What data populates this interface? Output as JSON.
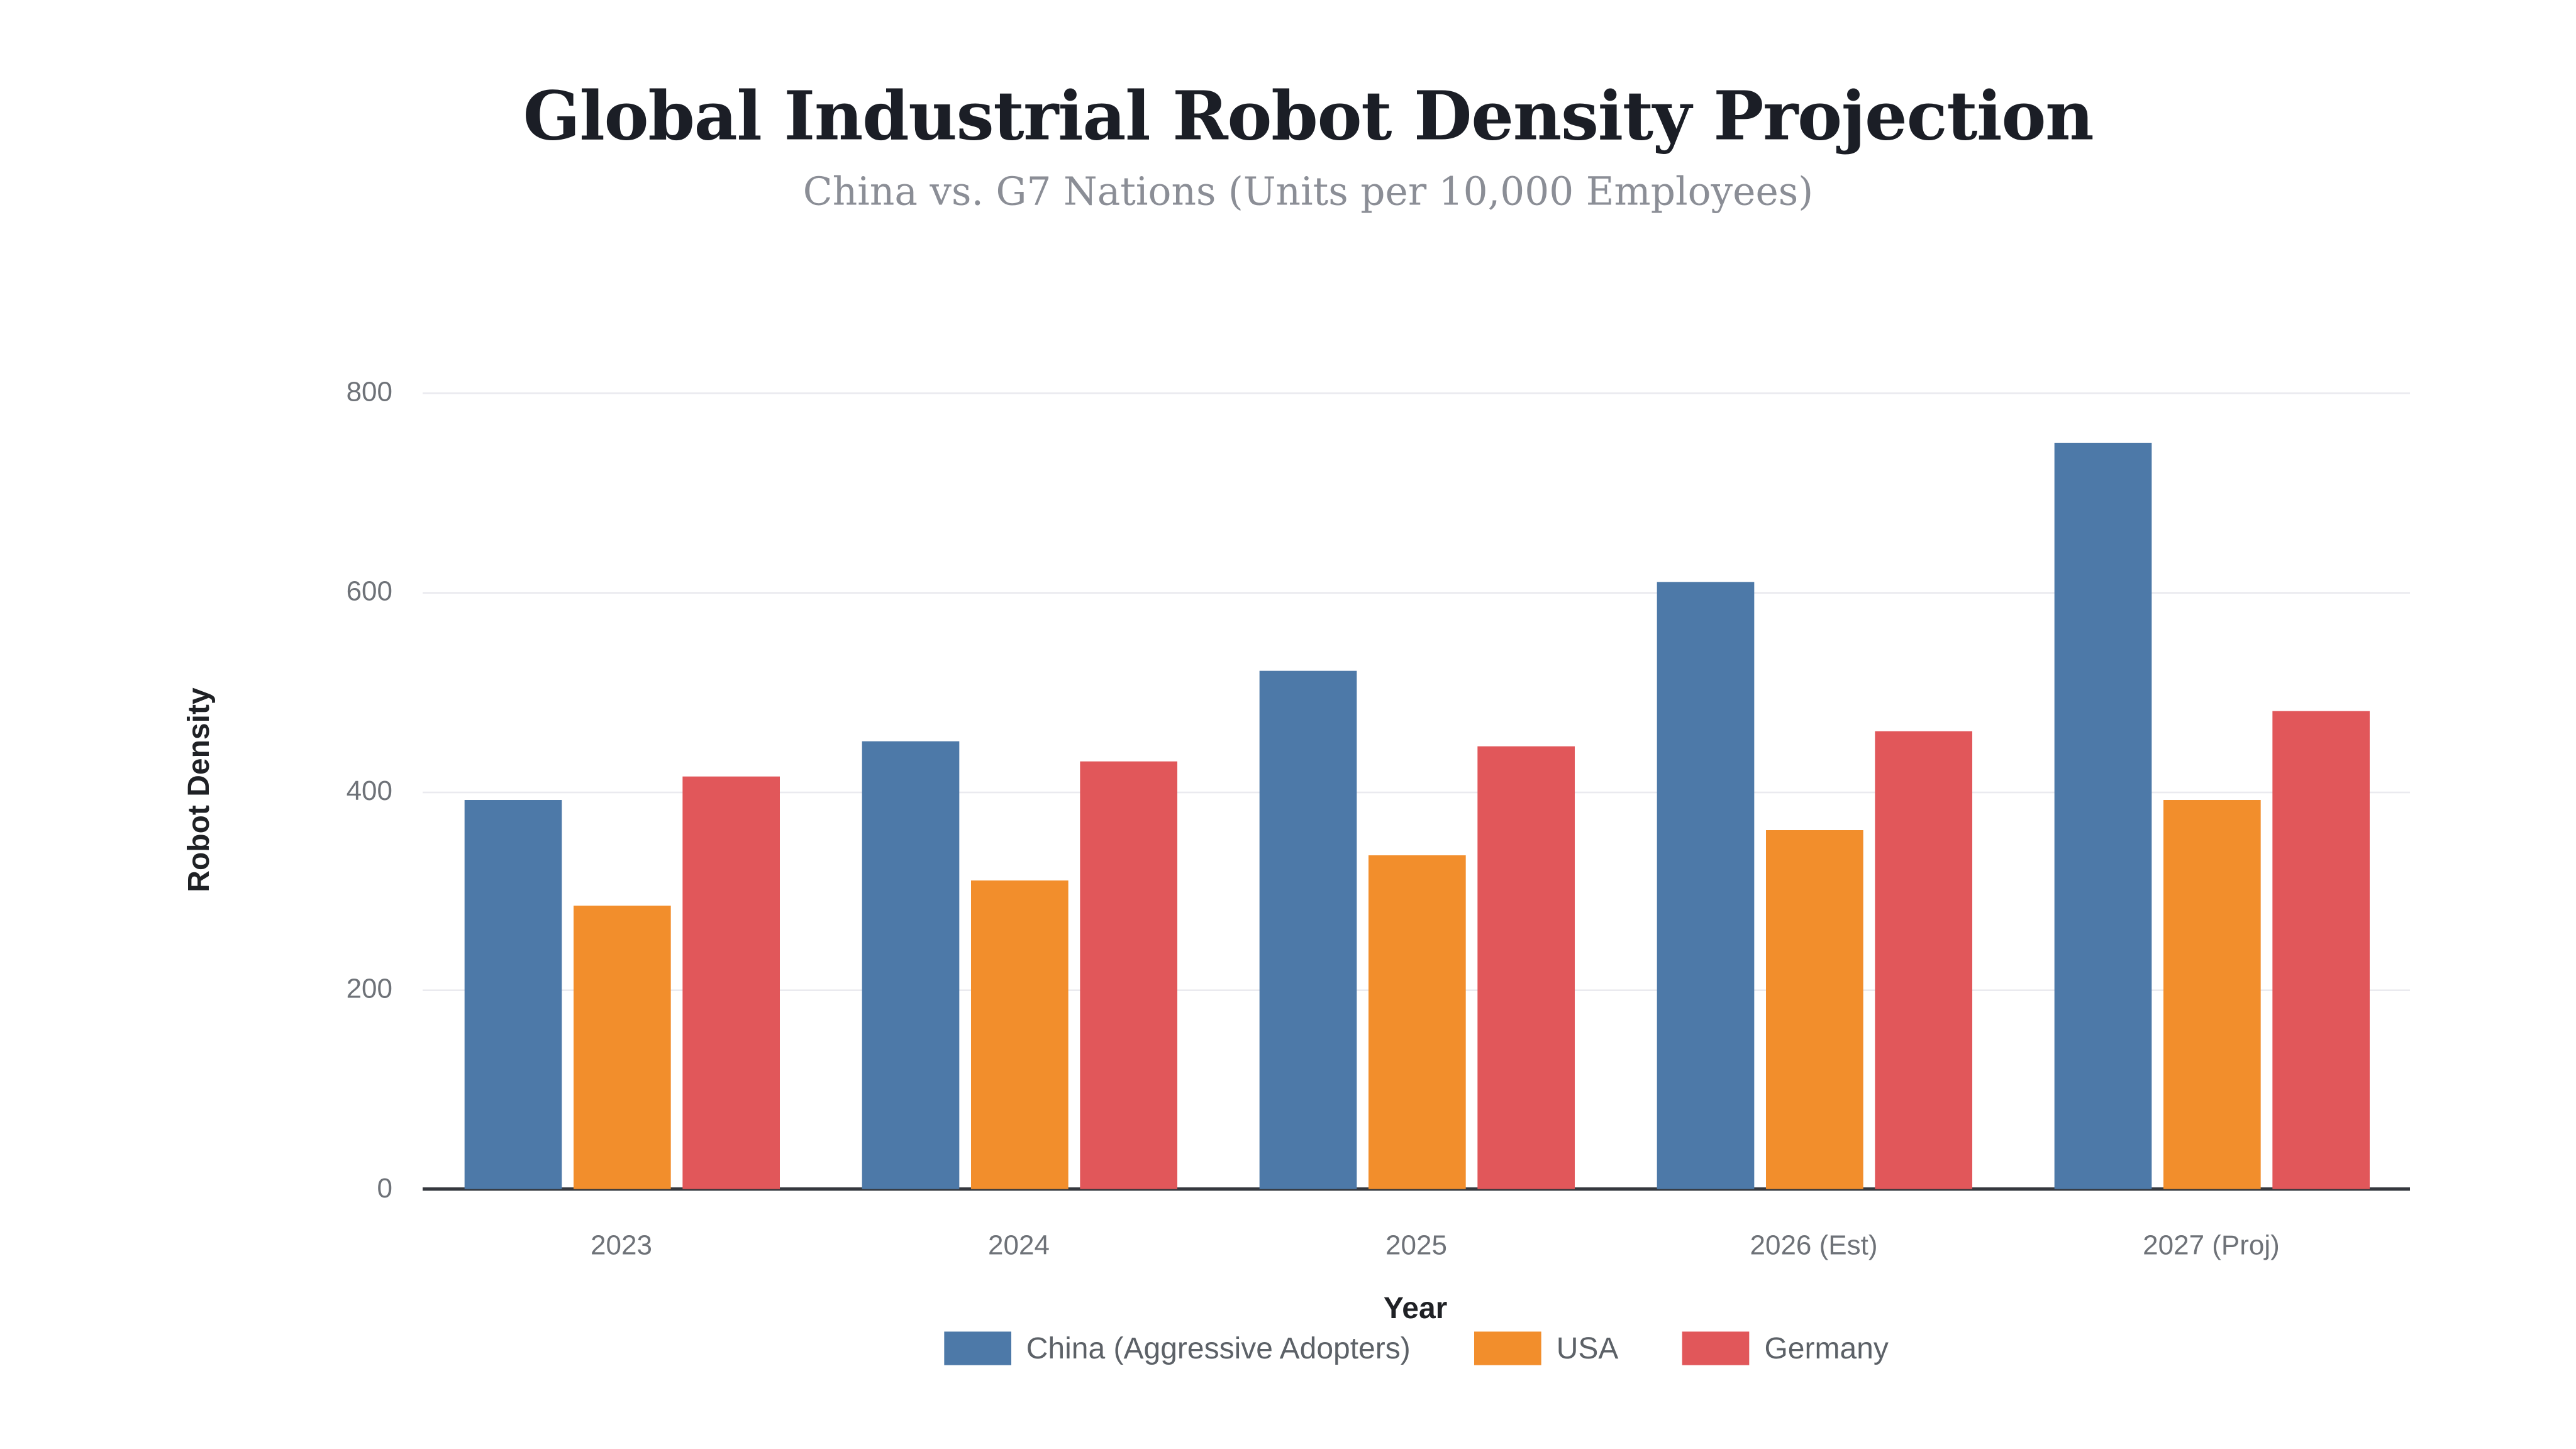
{
  "page": {
    "background": "#ffffff"
  },
  "chart_data": {
    "type": "bar",
    "title": "Global Industrial Robot Density Projection",
    "subtitle": "China vs. G7 Nations (Units per 10,000 Employees)",
    "xlabel": "Year",
    "ylabel": "Robot Density",
    "categories": [
      "2023",
      "2024",
      "2025",
      "2026 (Est)",
      "2027 (Proj)"
    ],
    "series": [
      {
        "name": "China (Aggressive Adopters)",
        "color": "#4d79a8",
        "values": [
          390,
          450,
          520,
          610,
          750
        ]
      },
      {
        "name": "USA",
        "color": "#f28e2c",
        "values": [
          285,
          310,
          335,
          360,
          390
        ]
      },
      {
        "name": "Germany",
        "color": "#e1575a",
        "values": [
          415,
          430,
          445,
          460,
          480
        ]
      }
    ],
    "y_ticks": [
      0,
      200,
      400,
      600,
      800
    ],
    "ylim": [
      0,
      800
    ],
    "grid": true,
    "legend_position": "bottom",
    "colors": {
      "title": "#1b1e26",
      "subtitle": "#8b8e96",
      "axis_line": "#35383e",
      "gridline": "#eaeaef",
      "tick_label": "#6e7278",
      "axis_title": "#1f2125",
      "legend_label": "#5c6167"
    }
  }
}
